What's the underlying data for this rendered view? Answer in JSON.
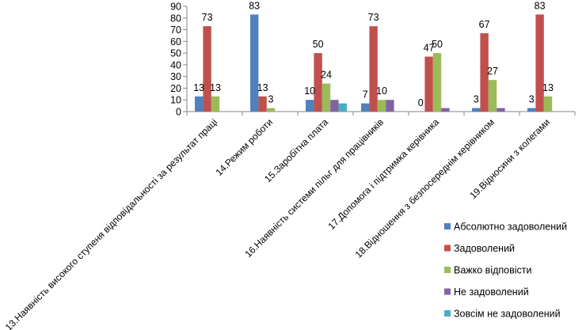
{
  "chart_data": {
    "type": "bar",
    "title": "",
    "xlabel": "",
    "ylabel": "",
    "ylim": [
      0,
      90
    ],
    "y_ticks": [
      0,
      10,
      20,
      30,
      40,
      50,
      60,
      70,
      80,
      90
    ],
    "grid": false,
    "legend_position": "right",
    "categories": [
      "13.Наявність високого ступеня відповідальності за результат праці",
      "14.Режим роботи",
      "15.Заробітна плата",
      "16.Наявність системи пільг для працівників",
      "17.Допомога і підтримка керівника",
      "18.Відношення з безпосереднім керівником",
      "19.Відносини з колегами"
    ],
    "series": [
      {
        "name": "Абсолютно задоволений",
        "color": "#4F81BD",
        "values": [
          13,
          83,
          10,
          7,
          0,
          3,
          3
        ]
      },
      {
        "name": "Задоволений",
        "color": "#C0504D",
        "values": [
          73,
          13,
          50,
          73,
          47,
          67,
          83
        ]
      },
      {
        "name": "Важко відповісти",
        "color": "#9BBB59",
        "values": [
          13,
          3,
          24,
          10,
          50,
          27,
          13
        ]
      },
      {
        "name": "Не задоволений",
        "color": "#8064A2",
        "values": [
          0,
          0,
          10,
          10,
          3,
          3,
          0
        ]
      },
      {
        "name": "Зовсім не задоволений",
        "color": "#4BACC6",
        "values": [
          0,
          0,
          7,
          0,
          0,
          0,
          0
        ]
      }
    ],
    "data_labels": [
      {
        "category": 0,
        "series": 0,
        "text": "13"
      },
      {
        "category": 0,
        "series": 1,
        "text": "73"
      },
      {
        "category": 0,
        "series": 2,
        "text": "13"
      },
      {
        "category": 1,
        "series": 0,
        "text": "83"
      },
      {
        "category": 1,
        "series": 1,
        "text": "13"
      },
      {
        "category": 1,
        "series": 2,
        "text": "3"
      },
      {
        "category": 2,
        "series": 0,
        "text": "10"
      },
      {
        "category": 2,
        "series": 1,
        "text": "50"
      },
      {
        "category": 2,
        "series": 2,
        "text": "24"
      },
      {
        "category": 3,
        "series": 0,
        "text": "7"
      },
      {
        "category": 3,
        "series": 1,
        "text": "73"
      },
      {
        "category": 3,
        "series": 2,
        "text": "10"
      },
      {
        "category": 4,
        "series": 0,
        "text": "0"
      },
      {
        "category": 4,
        "series": 1,
        "text": "47"
      },
      {
        "category": 4,
        "series": 2,
        "text": "50"
      },
      {
        "category": 5,
        "series": 0,
        "text": "3"
      },
      {
        "category": 5,
        "series": 1,
        "text": "67"
      },
      {
        "category": 5,
        "series": 2,
        "text": "27"
      },
      {
        "category": 6,
        "series": 0,
        "text": "3"
      },
      {
        "category": 6,
        "series": 1,
        "text": "83"
      },
      {
        "category": 6,
        "series": 2,
        "text": "13"
      }
    ]
  }
}
